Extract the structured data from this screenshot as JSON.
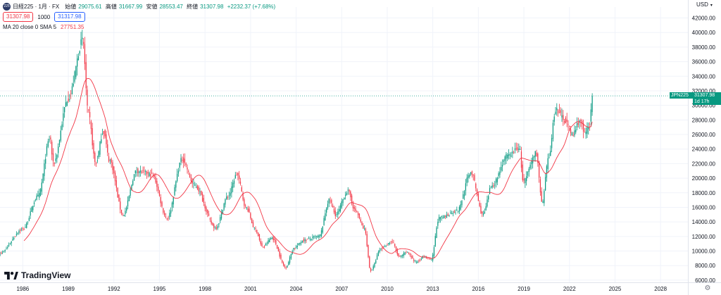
{
  "header": {
    "symbol": "日経225 · 1月 · FX",
    "open_label": "始値",
    "open": "29075.61",
    "high_label": "高値",
    "high": "31667.99",
    "low_label": "安値",
    "low": "28553.47",
    "close_label": "終値",
    "close": "31307.98",
    "change": "+2232.37 (+7.68%)"
  },
  "order": {
    "sell": "31307.98",
    "qty": "1000",
    "buy": "31317.98"
  },
  "indicator": {
    "label": "MA 20 close 0 SMA 5",
    "value": "27751.35"
  },
  "currency": "USD",
  "last_price": {
    "symbol": "JPN225",
    "price": "31307.98",
    "countdown": "1d 17h"
  },
  "branding": "TradingView",
  "colors": {
    "up": "#089981",
    "down": "#f23645",
    "ma": "#f23645",
    "grid": "#f0f3fa",
    "axis": "#131722"
  },
  "chart_data": {
    "type": "candlestick",
    "title": "日経225 · 1月 · FX",
    "x_ticks": [
      "1986",
      "1989",
      "1992",
      "1995",
      "1998",
      "2001",
      "2004",
      "2007",
      "2010",
      "2013",
      "2016",
      "2019",
      "2022",
      "2025",
      "2028"
    ],
    "x_range": [
      1984.5,
      2029.8
    ],
    "y_ticks": [
      "6000.00",
      "8000.00",
      "10000.00",
      "12000.00",
      "14000.00",
      "16000.00",
      "18000.00",
      "20000.00",
      "22000.00",
      "24000.00",
      "26000.00",
      "28000.00",
      "30000.00",
      "32000.00",
      "34000.00",
      "36000.00",
      "38000.00",
      "40000.00",
      "42000.00"
    ],
    "y_range": [
      5700,
      43500
    ],
    "price_anchors": [
      [
        1984.5,
        9700
      ],
      [
        1986.0,
        13000
      ],
      [
        1987.0,
        17500
      ],
      [
        1987.8,
        25500
      ],
      [
        1988.0,
        22000
      ],
      [
        1989.0,
        31000
      ],
      [
        1989.95,
        38900
      ],
      [
        1990.3,
        29000
      ],
      [
        1990.8,
        22000
      ],
      [
        1991.3,
        26500
      ],
      [
        1991.7,
        22500
      ],
      [
        1992.6,
        15000
      ],
      [
        1993.5,
        21000
      ],
      [
        1994.5,
        20500
      ],
      [
        1995.5,
        14500
      ],
      [
        1996.5,
        22600
      ],
      [
        1997.3,
        19000
      ],
      [
        1998.7,
        13200
      ],
      [
        1999.5,
        17500
      ],
      [
        2000.1,
        20500
      ],
      [
        2000.7,
        16000
      ],
      [
        2001.3,
        13000
      ],
      [
        2001.8,
        10500
      ],
      [
        2002.4,
        11800
      ],
      [
        2003.3,
        7800
      ],
      [
        2003.9,
        10500
      ],
      [
        2004.5,
        11500
      ],
      [
        2005.5,
        12000
      ],
      [
        2006.2,
        17000
      ],
      [
        2006.6,
        15000
      ],
      [
        2007.4,
        18200
      ],
      [
        2007.9,
        15500
      ],
      [
        2008.5,
        13000
      ],
      [
        2008.9,
        7300
      ],
      [
        2009.6,
        10300
      ],
      [
        2010.3,
        11300
      ],
      [
        2010.8,
        9200
      ],
      [
        2011.3,
        9800
      ],
      [
        2011.9,
        8500
      ],
      [
        2012.4,
        9200
      ],
      [
        2012.9,
        8800
      ],
      [
        2013.4,
        14500
      ],
      [
        2014.6,
        15500
      ],
      [
        2015.5,
        20800
      ],
      [
        2016.3,
        15000
      ],
      [
        2016.9,
        19000
      ],
      [
        2017.9,
        23000
      ],
      [
        2018.7,
        24200
      ],
      [
        2018.95,
        19500
      ],
      [
        2019.8,
        23500
      ],
      [
        2020.2,
        16500
      ],
      [
        2020.6,
        22500
      ],
      [
        2021.1,
        29500
      ],
      [
        2021.7,
        28000
      ],
      [
        2022.2,
        26000
      ],
      [
        2022.7,
        28000
      ],
      [
        2023.0,
        26000
      ],
      [
        2023.3,
        27500
      ],
      [
        2023.42,
        29075.61
      ],
      [
        2023.5,
        31307.98
      ]
    ],
    "last_candle": {
      "open": 29075.61,
      "high": 31667.99,
      "low": 28553.47,
      "close": 31307.98
    },
    "series": [
      {
        "name": "MA 20 close 0 SMA 5",
        "type": "line",
        "period": 20,
        "last_value": 27751.35
      }
    ],
    "current_price_line": 31307.98
  }
}
